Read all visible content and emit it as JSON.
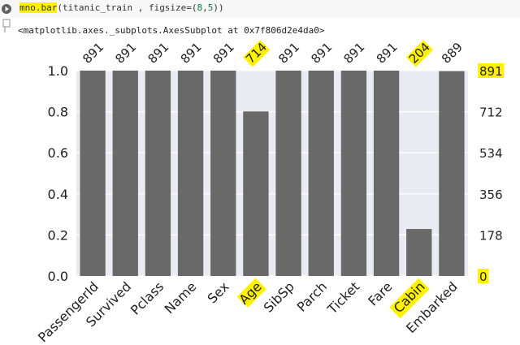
{
  "cell": {
    "code_func": "mno.bar",
    "code_args_before": "(titanic_train , figsize=(",
    "code_num1": "8",
    "code_comma": ",",
    "code_num2": "5",
    "code_close": "))",
    "output": "<matplotlib.axes._subplots.AxesSubplot at 0x7f806d2e4da0>"
  },
  "colors": {
    "bar": "#696969",
    "plot_bg": "#eaeaf2",
    "highlight": "#fff200"
  },
  "chart_data": {
    "type": "bar",
    "categories": [
      "PassengerId",
      "Survived",
      "Pclass",
      "Name",
      "Sex",
      "Age",
      "SibSp",
      "Parch",
      "Ticket",
      "Fare",
      "Cabin",
      "Embarked"
    ],
    "values": [
      1.0,
      1.0,
      1.0,
      1.0,
      1.0,
      0.8013,
      1.0,
      1.0,
      1.0,
      1.0,
      0.229,
      0.9978
    ],
    "counts": [
      "891",
      "891",
      "891",
      "891",
      "891",
      "714",
      "891",
      "891",
      "891",
      "891",
      "204",
      "889"
    ],
    "highlighted_categories": [
      "Age",
      "Cabin"
    ],
    "ylim": [
      0,
      1.0
    ],
    "left_ticks": [
      "0.0",
      "0.2",
      "0.4",
      "0.6",
      "0.8",
      "1.0"
    ],
    "right_ticks": [
      "0",
      "178",
      "356",
      "534",
      "712",
      "891"
    ]
  }
}
